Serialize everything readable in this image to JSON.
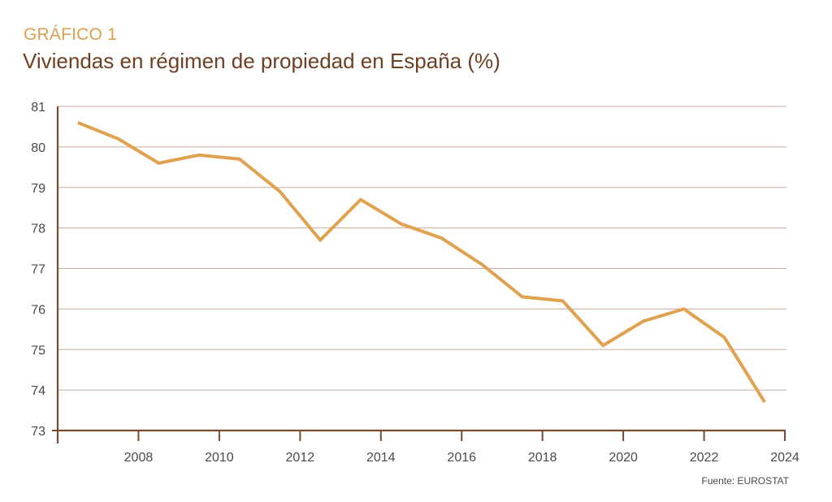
{
  "header": {
    "kicker": "GRÁFICO 1",
    "title": "Viviendas en régimen de propiedad en España (%)"
  },
  "source": "Fuente: EUROSTAT",
  "colors": {
    "line": "#e0a24e",
    "axis": "#7a4b2d",
    "grid": "#c8aaa0",
    "kicker": "#d9a050",
    "title": "#6e3f22"
  },
  "chart_data": {
    "type": "line",
    "title": "Viviendas en régimen de propiedad en España (%)",
    "xlabel": "",
    "ylabel": "",
    "x": [
      2006,
      2007,
      2008,
      2009,
      2010,
      2011,
      2012,
      2013,
      2014,
      2015,
      2016,
      2017,
      2018,
      2019,
      2020,
      2021,
      2022,
      2023
    ],
    "series": [
      {
        "name": "Viviendas en régimen de propiedad (%)",
        "values": [
          80.6,
          80.2,
          79.6,
          79.8,
          79.7,
          78.9,
          77.7,
          78.7,
          78.1,
          77.75,
          77.1,
          76.3,
          76.2,
          75.1,
          75.7,
          76.0,
          75.3,
          73.7
        ]
      }
    ],
    "xlim": [
      2006,
      2024
    ],
    "ylim": [
      73,
      81
    ],
    "xticks": [
      2008,
      2010,
      2012,
      2014,
      2016,
      2018,
      2020,
      2022,
      2024
    ],
    "yticks": [
      73,
      74,
      75,
      76,
      77,
      78,
      79,
      80,
      81
    ],
    "grid": "horizontal",
    "legend": "none",
    "annotations": [
      "Fuente: EUROSTAT"
    ]
  }
}
